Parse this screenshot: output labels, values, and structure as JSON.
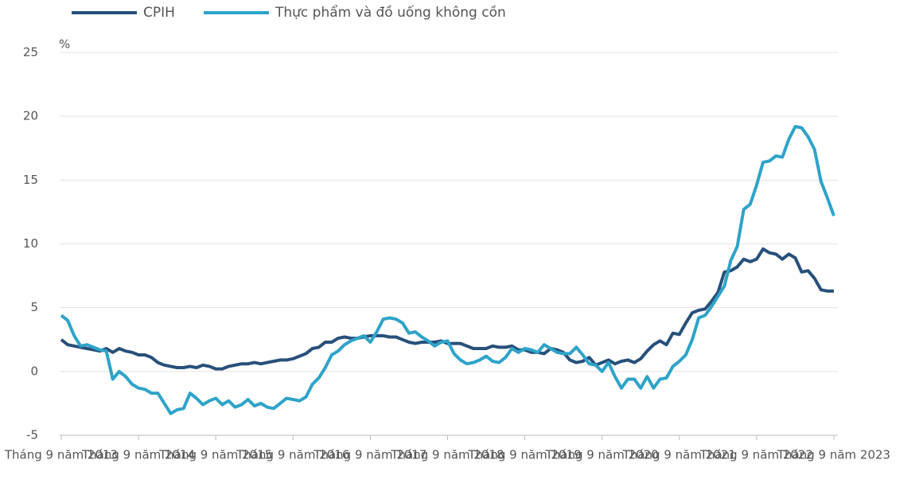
{
  "chart_data": {
    "type": "line",
    "y_label": "%",
    "categories": [
      "Tháng 9 năm 2013",
      null,
      null,
      null,
      null,
      null,
      null,
      null,
      null,
      null,
      null,
      null,
      "Tháng 9 năm 2014",
      null,
      null,
      null,
      null,
      null,
      null,
      null,
      null,
      null,
      null,
      null,
      "Tháng 9 năm 2015",
      null,
      null,
      null,
      null,
      null,
      null,
      null,
      null,
      null,
      null,
      null,
      "Tháng 9 năm 2016",
      null,
      null,
      null,
      null,
      null,
      null,
      null,
      null,
      null,
      null,
      null,
      "Tháng 9 năm 2017",
      null,
      null,
      null,
      null,
      null,
      null,
      null,
      null,
      null,
      null,
      null,
      "Tháng 9 năm 2018",
      null,
      null,
      null,
      null,
      null,
      null,
      null,
      null,
      null,
      null,
      null,
      "Tháng 9 năm 2019",
      null,
      null,
      null,
      null,
      null,
      null,
      null,
      null,
      null,
      null,
      null,
      "Tháng 9 năm 2020",
      null,
      null,
      null,
      null,
      null,
      null,
      null,
      null,
      null,
      null,
      null,
      "Tháng 9 năm 2021",
      null,
      null,
      null,
      null,
      null,
      null,
      null,
      null,
      null,
      null,
      null,
      "Tháng 9 năm 2022",
      null,
      null,
      null,
      null,
      null,
      null,
      null,
      null,
      null,
      null,
      null,
      "Tháng 9 năm 2023"
    ],
    "series": [
      {
        "name": "CPIH",
        "color": "#27507a",
        "values": [
          2.5,
          2.1,
          2.0,
          1.9,
          1.8,
          1.7,
          1.6,
          1.8,
          1.5,
          1.8,
          1.6,
          1.5,
          1.3,
          1.3,
          1.1,
          0.7,
          0.5,
          0.4,
          0.3,
          0.3,
          0.4,
          0.3,
          0.5,
          0.4,
          0.2,
          0.2,
          0.4,
          0.5,
          0.6,
          0.6,
          0.7,
          0.6,
          0.7,
          0.8,
          0.9,
          0.9,
          1.0,
          1.2,
          1.4,
          1.8,
          1.9,
          2.3,
          2.3,
          2.6,
          2.7,
          2.6,
          2.6,
          2.7,
          2.8,
          2.8,
          2.8,
          2.7,
          2.7,
          2.5,
          2.3,
          2.2,
          2.3,
          2.3,
          2.3,
          2.4,
          2.2,
          2.2,
          2.2,
          2.0,
          1.8,
          1.8,
          1.8,
          2.0,
          1.9,
          1.9,
          2.0,
          1.7,
          1.7,
          1.5,
          1.5,
          1.4,
          1.8,
          1.7,
          1.5,
          0.9,
          0.7,
          0.8,
          1.1,
          0.5,
          0.7,
          0.9,
          0.6,
          0.8,
          0.9,
          0.7,
          1.0,
          1.6,
          2.1,
          2.4,
          2.1,
          3.0,
          2.9,
          3.8,
          4.6,
          4.8,
          4.9,
          5.5,
          6.2,
          7.8,
          7.9,
          8.2,
          8.8,
          8.6,
          8.8,
          9.6,
          9.3,
          9.2,
          8.8,
          9.2,
          8.9,
          7.8,
          7.9,
          7.3,
          6.4,
          6.3,
          6.3
        ]
      },
      {
        "name": "Thực phẩm và đồ uống không cồn",
        "color": "#2ea3c9",
        "values": [
          4.4,
          4.0,
          2.8,
          2.0,
          2.1,
          1.9,
          1.7,
          1.6,
          -0.6,
          0.0,
          -0.4,
          -1.0,
          -1.3,
          -1.4,
          -1.7,
          -1.7,
          -2.5,
          -3.3,
          -3.0,
          -2.9,
          -1.7,
          -2.1,
          -2.6,
          -2.3,
          -2.1,
          -2.6,
          -2.3,
          -2.8,
          -2.6,
          -2.2,
          -2.7,
          -2.5,
          -2.8,
          -2.9,
          -2.5,
          -2.1,
          -2.2,
          -2.3,
          -2.0,
          -1.0,
          -0.5,
          0.3,
          1.3,
          1.6,
          2.1,
          2.4,
          2.6,
          2.8,
          2.3,
          3.1,
          4.1,
          4.2,
          4.1,
          3.8,
          3.0,
          3.1,
          2.7,
          2.4,
          2.0,
          2.3,
          2.4,
          1.4,
          0.9,
          0.6,
          0.7,
          0.9,
          1.2,
          0.8,
          0.7,
          1.1,
          1.8,
          1.5,
          1.8,
          1.7,
          1.5,
          2.1,
          1.8,
          1.5,
          1.4,
          1.4,
          1.9,
          1.3,
          0.6,
          0.5,
          0.0,
          0.7,
          -0.4,
          -1.3,
          -0.6,
          -0.6,
          -1.3,
          -0.4,
          -1.3,
          -0.6,
          -0.5,
          0.4,
          0.8,
          1.3,
          2.5,
          4.2,
          4.4,
          5.1,
          5.9,
          6.7,
          8.7,
          9.8,
          12.7,
          13.1,
          14.6,
          16.4,
          16.5,
          16.9,
          16.8,
          18.2,
          19.2,
          19.1,
          18.4,
          17.4,
          14.9,
          13.6,
          12.2
        ]
      }
    ],
    "ylim": [
      -5,
      25
    ],
    "yticks": [
      -5,
      0,
      5,
      10,
      15,
      20,
      25
    ],
    "grid": true
  }
}
